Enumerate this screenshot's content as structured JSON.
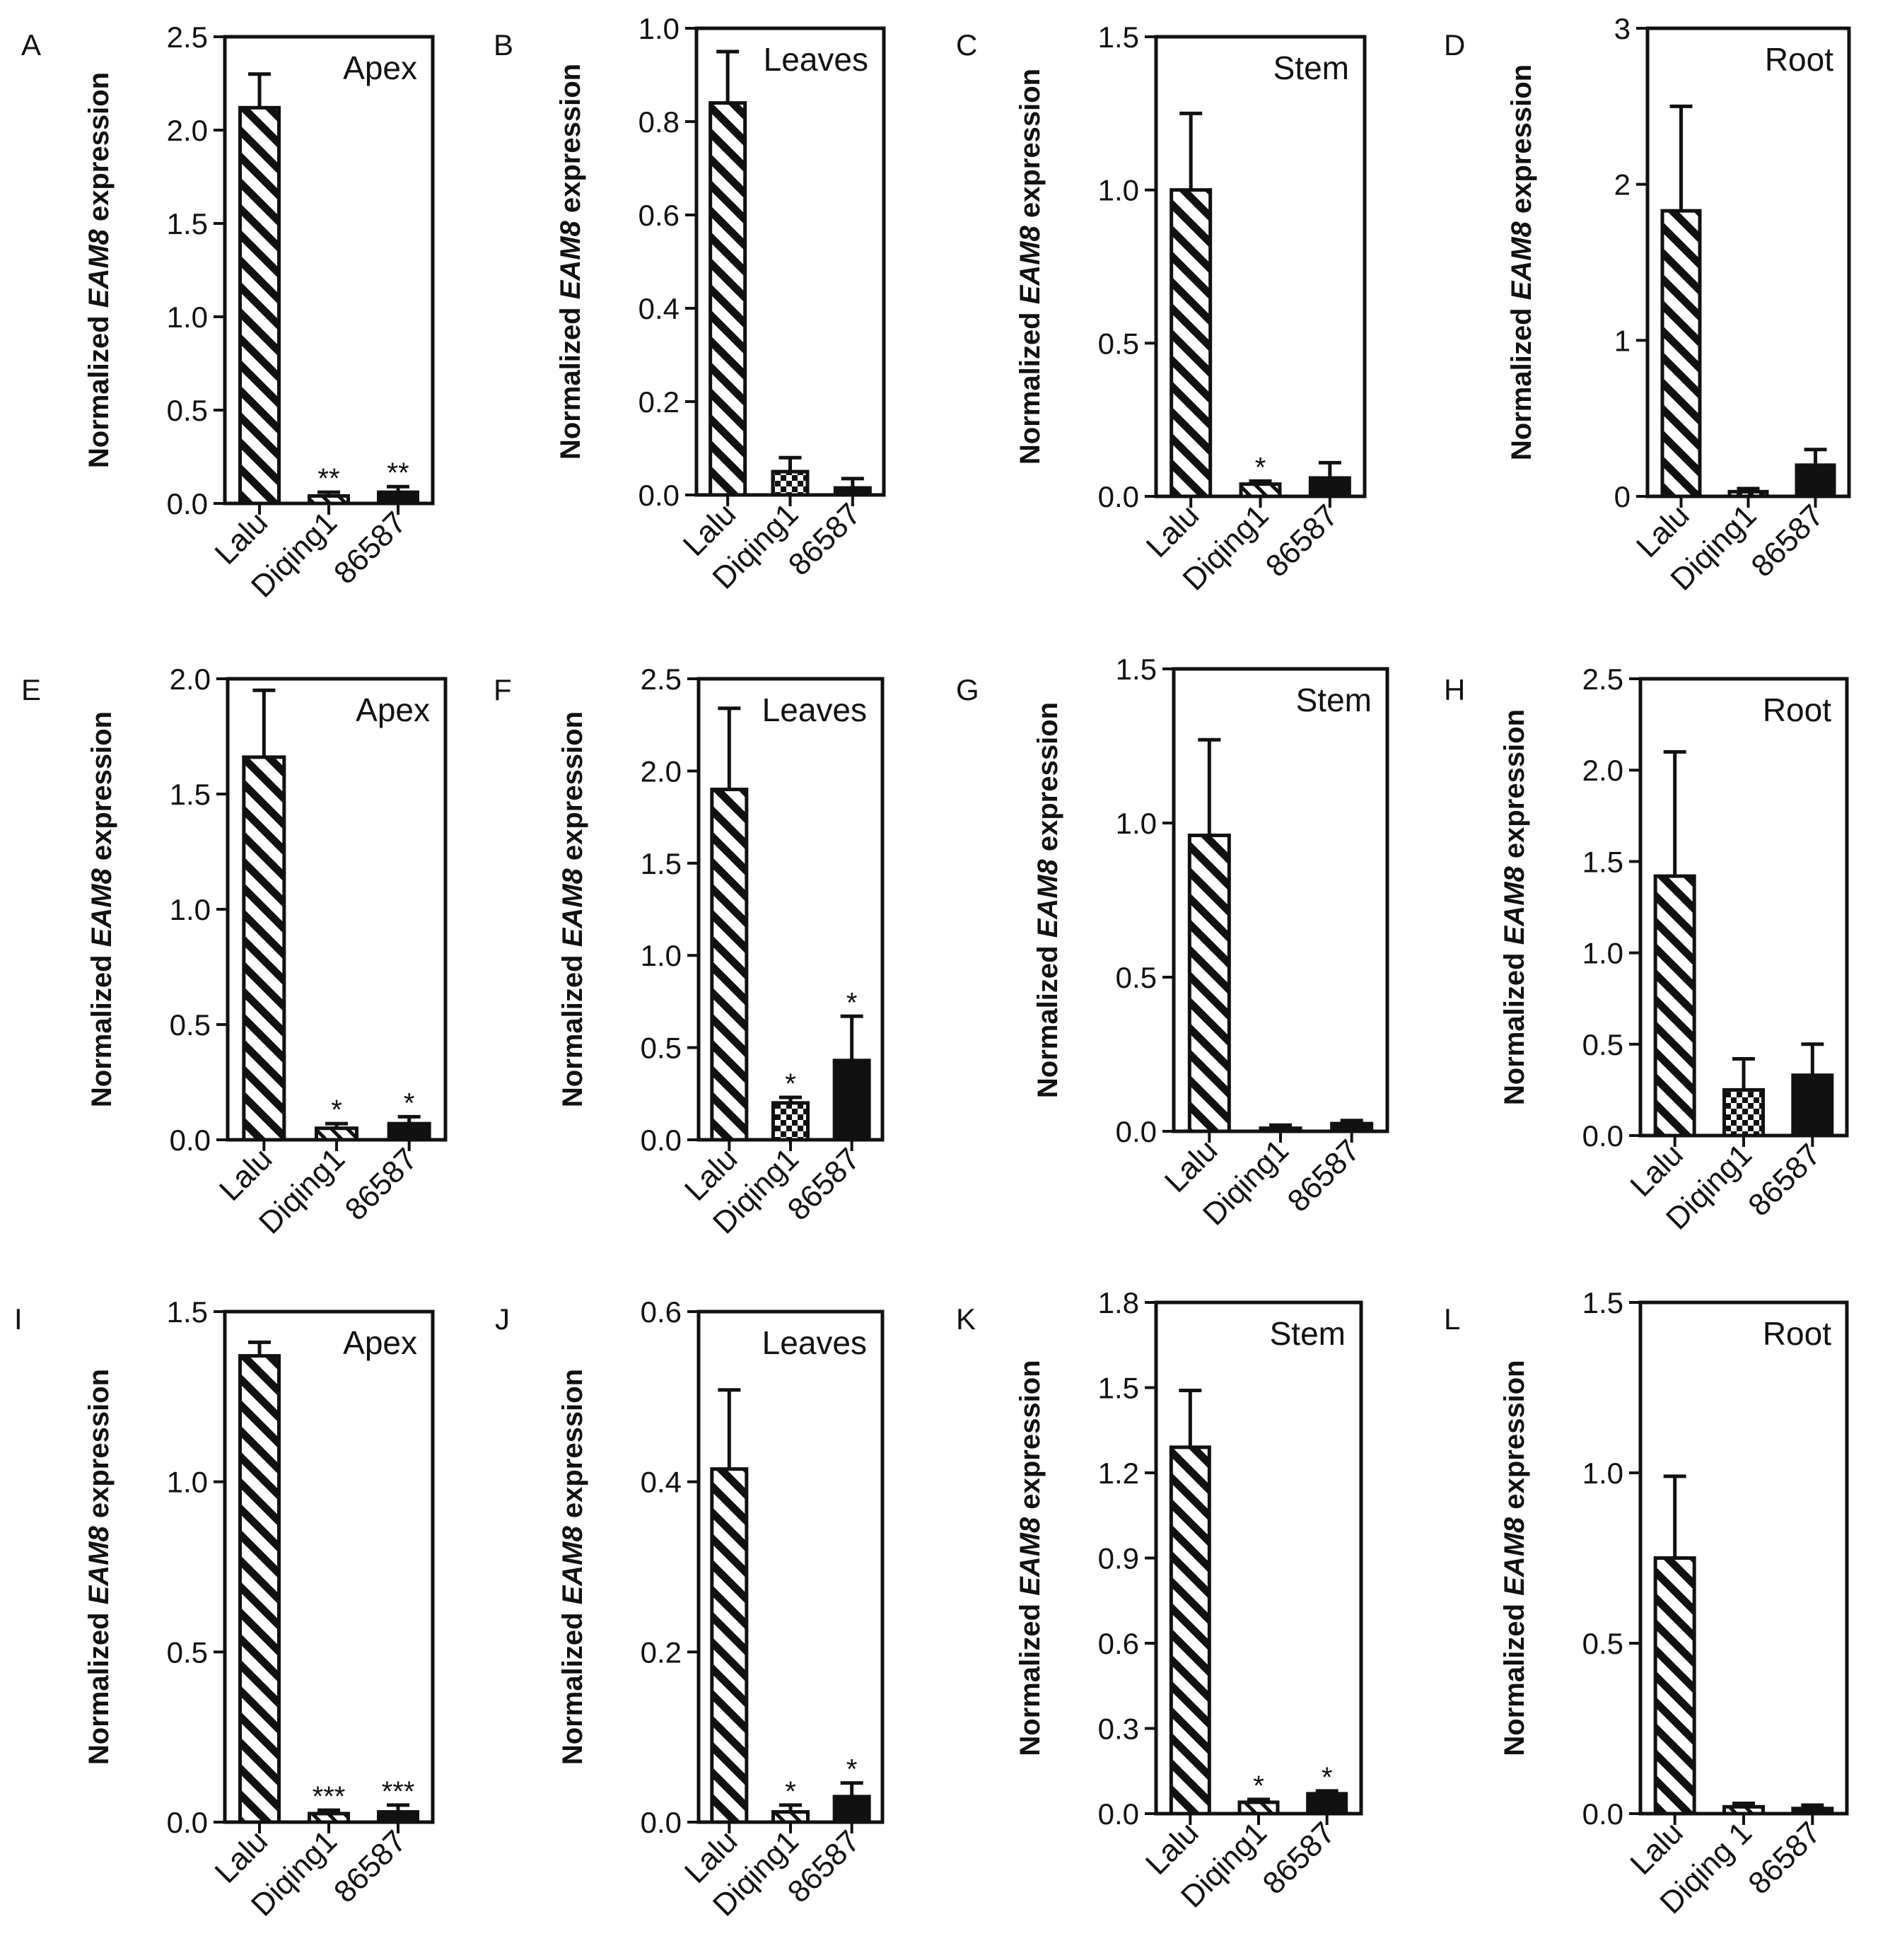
{
  "figure": {
    "y_label_prefix": "Normalized ",
    "y_label_gene": "EAM8",
    "y_label_suffix": " expression",
    "colors": {
      "ink": "#111111",
      "background": "#ffffff"
    }
  },
  "chart_data": [
    {
      "type": "bar",
      "panel": "A",
      "title": "Apex",
      "categories": [
        "Lalu",
        "Diqing1",
        "86587"
      ],
      "values": [
        2.12,
        0.04,
        0.06
      ],
      "errors": [
        0.18,
        0.02,
        0.03
      ],
      "significance": [
        "",
        "**",
        "**"
      ],
      "ylim": [
        0,
        2.5
      ],
      "yticks": [
        "0.0",
        "0.5",
        "1.0",
        "1.5",
        "2.0",
        "2.5"
      ],
      "ylabel": "Normalized EAM8 expression",
      "fills": [
        "hatch",
        "hatch-light",
        "solid"
      ]
    },
    {
      "type": "bar",
      "panel": "B",
      "title": "Leaves",
      "categories": [
        "Lalu",
        "Diqing1",
        "86587"
      ],
      "values": [
        0.84,
        0.05,
        0.015
      ],
      "errors": [
        0.11,
        0.03,
        0.02
      ],
      "significance": [
        "",
        "",
        ""
      ],
      "ylim": [
        0,
        1.0
      ],
      "yticks": [
        "0.0",
        "0.2",
        "0.4",
        "0.6",
        "0.8",
        "1.0"
      ],
      "ylabel": "Normalized EAM8 expression",
      "fills": [
        "hatch",
        "checker",
        "solid"
      ]
    },
    {
      "type": "bar",
      "panel": "C",
      "title": "Stem",
      "categories": [
        "Lalu",
        "Diqing1",
        "86587"
      ],
      "values": [
        1.0,
        0.04,
        0.06
      ],
      "errors": [
        0.25,
        0.01,
        0.05
      ],
      "significance": [
        "",
        "*",
        ""
      ],
      "ylim": [
        0,
        1.5
      ],
      "yticks": [
        "0.0",
        "0.5",
        "1.0",
        "1.5"
      ],
      "ylabel": "Normalized EAM8 expression",
      "fills": [
        "hatch",
        "hatch-light",
        "solid"
      ]
    },
    {
      "type": "bar",
      "panel": "D",
      "title": "Root",
      "categories": [
        "Lalu",
        "Diqing1",
        "86587"
      ],
      "values": [
        1.83,
        0.03,
        0.2
      ],
      "errors": [
        0.67,
        0.02,
        0.1
      ],
      "significance": [
        "",
        "",
        ""
      ],
      "ylim": [
        0,
        3
      ],
      "yticks": [
        "0",
        "1",
        "2",
        "3"
      ],
      "ylabel": "Normalized EAM8 expression",
      "fills": [
        "hatch",
        "checker",
        "solid"
      ]
    },
    {
      "type": "bar",
      "panel": "E",
      "title": "Apex",
      "categories": [
        "Lalu",
        "Diqing1",
        "86587"
      ],
      "values": [
        1.66,
        0.05,
        0.07
      ],
      "errors": [
        0.29,
        0.02,
        0.03
      ],
      "significance": [
        "",
        "*",
        "*"
      ],
      "ylim": [
        0,
        2.0
      ],
      "yticks": [
        "0.0",
        "0.5",
        "1.0",
        "1.5",
        "2.0"
      ],
      "ylabel": "Normalized EAM8 expression",
      "fills": [
        "hatch",
        "hatch-light",
        "solid"
      ]
    },
    {
      "type": "bar",
      "panel": "F",
      "title": "Leaves",
      "categories": [
        "Lalu",
        "Diqing1",
        "86587"
      ],
      "values": [
        1.9,
        0.2,
        0.43
      ],
      "errors": [
        0.44,
        0.03,
        0.24
      ],
      "significance": [
        "",
        "*",
        "*"
      ],
      "ylim": [
        0,
        2.5
      ],
      "yticks": [
        "0.0",
        "0.5",
        "1.0",
        "1.5",
        "2.0",
        "2.5"
      ],
      "ylabel": "Normalized EAM8 expression",
      "fills": [
        "hatch",
        "checker",
        "solid"
      ]
    },
    {
      "type": "bar",
      "panel": "G",
      "title": "Stem",
      "categories": [
        "Lalu",
        "Diqing1",
        "86587"
      ],
      "values": [
        0.96,
        0.01,
        0.025
      ],
      "errors": [
        0.31,
        0.01,
        0.01
      ],
      "significance": [
        "",
        "",
        ""
      ],
      "ylim": [
        0,
        1.5
      ],
      "yticks": [
        "0.0",
        "0.5",
        "1.0",
        "1.5"
      ],
      "ylabel": "Normalized EAM8 expression",
      "fills": [
        "hatch",
        "hatch-light",
        "solid"
      ]
    },
    {
      "type": "bar",
      "panel": "H",
      "title": "Root",
      "categories": [
        "Lalu",
        "Diqing1",
        "86587"
      ],
      "values": [
        1.42,
        0.25,
        0.33
      ],
      "errors": [
        0.68,
        0.17,
        0.17
      ],
      "significance": [
        "",
        "",
        ""
      ],
      "ylim": [
        0,
        2.5
      ],
      "yticks": [
        "0.0",
        "0.5",
        "1.0",
        "1.5",
        "2.0",
        "2.5"
      ],
      "ylabel": "Normalized EAM8 expression",
      "fills": [
        "hatch",
        "checker",
        "solid"
      ]
    },
    {
      "type": "bar",
      "panel": "I",
      "title": "Apex",
      "categories": [
        "Lalu",
        "Diqing1",
        "86587"
      ],
      "values": [
        1.37,
        0.025,
        0.03
      ],
      "errors": [
        0.04,
        0.01,
        0.02
      ],
      "significance": [
        "",
        "***",
        "***"
      ],
      "ylim": [
        0,
        1.5
      ],
      "yticks": [
        "0.0",
        "0.5",
        "1.0",
        "1.5"
      ],
      "ylabel": "Normalized EAM8 expression",
      "fills": [
        "hatch",
        "hatch-light",
        "solid"
      ]
    },
    {
      "type": "bar",
      "panel": "J",
      "title": "Leaves",
      "categories": [
        "Lalu",
        "Diqing1",
        "86587"
      ],
      "values": [
        0.415,
        0.012,
        0.03
      ],
      "errors": [
        0.093,
        0.008,
        0.016
      ],
      "significance": [
        "",
        "*",
        "*"
      ],
      "ylim": [
        0,
        0.6
      ],
      "yticks": [
        "0.0",
        "0.2",
        "0.4",
        "0.6"
      ],
      "ylabel": "Normalized EAM8 expression",
      "fills": [
        "hatch",
        "hatch-light",
        "solid"
      ]
    },
    {
      "type": "bar",
      "panel": "K",
      "title": "Stem",
      "categories": [
        "Lalu",
        "Diqing1",
        "86587"
      ],
      "values": [
        1.29,
        0.04,
        0.07
      ],
      "errors": [
        0.2,
        0.01,
        0.01
      ],
      "significance": [
        "",
        "*",
        "*"
      ],
      "ylim": [
        0,
        1.8
      ],
      "yticks": [
        "0.0",
        "0.3",
        "0.6",
        "0.9",
        "1.2",
        "1.5",
        "1.8"
      ],
      "ylabel": "Normalized EAM8 expression",
      "fills": [
        "hatch",
        "hatch-light",
        "solid"
      ]
    },
    {
      "type": "bar",
      "panel": "L",
      "title": "Root",
      "categories": [
        "Lalu",
        "Diqing 1",
        "86587"
      ],
      "values": [
        0.75,
        0.02,
        0.015
      ],
      "errors": [
        0.24,
        0.01,
        0.01
      ],
      "significance": [
        "",
        "",
        ""
      ],
      "ylim": [
        0,
        1.5
      ],
      "yticks": [
        "0.0",
        "0.5",
        "1.0",
        "1.5"
      ],
      "ylabel": "Normalized EAM8 expression",
      "fills": [
        "hatch",
        "hatch-light",
        "solid"
      ]
    }
  ]
}
